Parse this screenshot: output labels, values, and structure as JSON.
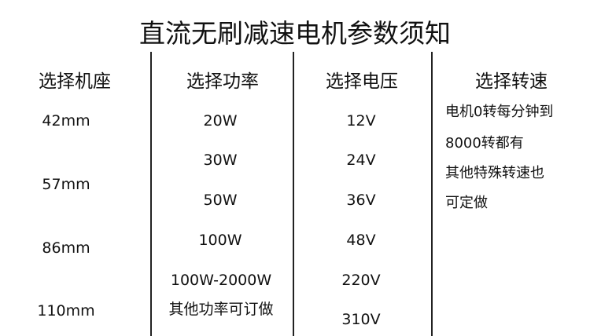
{
  "title": "直流无刷减速电机参数须知",
  "columns": [
    {
      "header": "选择机座",
      "items": [
        "42mm",
        "57mm",
        "86mm",
        "110mm"
      ]
    },
    {
      "header": "选择功率",
      "items": [
        "20W",
        "30W",
        "50W",
        "100W",
        "100W-2000W",
        "其他功率可订做"
      ]
    },
    {
      "header": "选择电压",
      "items": [
        "12V",
        "24V",
        "36V",
        "48V",
        "220V",
        "310V"
      ]
    },
    {
      "header": "选择转速",
      "items": [
        "电机0转每分钟到",
        "8000转都有",
        "其他特殊转速也",
        "可定做"
      ]
    }
  ]
}
